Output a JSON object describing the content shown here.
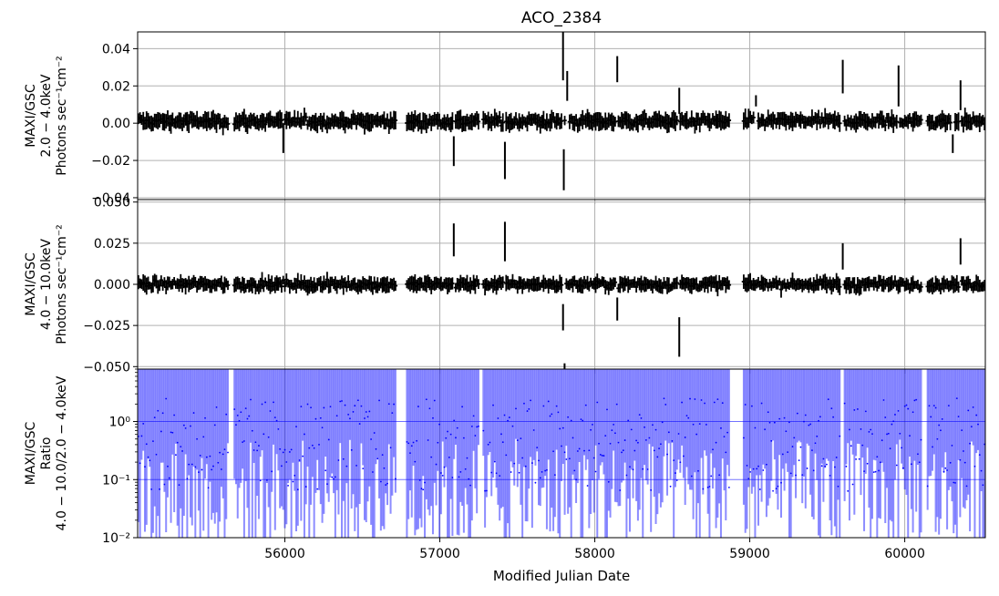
{
  "title": "ACO_2384",
  "xlabel": "Modified Julian Date",
  "x_ticks": [
    56000,
    57000,
    58000,
    59000,
    60000
  ],
  "xlim": [
    55050,
    60520
  ],
  "colors": {
    "rate_errorbars": "#000000",
    "ratio_errorbars": "#0000ff",
    "grid": "#b0b0b0",
    "ratio_guides": "#0000ff"
  },
  "panels": [
    {
      "id": "soft",
      "ylabel": [
        "MAXI/GSC",
        "2.0 − 4.0keV",
        "Photons sec⁻¹cm⁻²"
      ],
      "ylim": [
        -0.041,
        0.049
      ],
      "ytick_values": [
        -0.04,
        -0.02,
        0.0,
        0.02,
        0.04
      ],
      "ytick_labels": [
        "−0.04",
        "−0.02",
        "0.00",
        "0.02",
        "0.04"
      ]
    },
    {
      "id": "hard",
      "ylabel": [
        "MAXI/GSC",
        "4.0 − 10.0keV",
        "Photons sec⁻¹cm⁻²"
      ],
      "ylim": [
        -0.0515,
        0.0515
      ],
      "ytick_values": [
        -0.05,
        -0.025,
        0.0,
        0.025,
        0.05
      ],
      "ytick_labels": [
        "−0.050",
        "−0.025",
        "0.000",
        "0.025",
        "0.050"
      ]
    },
    {
      "id": "ratio",
      "ylabel": [
        "MAXI/GSC",
        "Ratio",
        "4.0 − 10.0/2.0 − 4.0keV"
      ],
      "yscale": "log",
      "ylim": [
        0.01,
        8
      ],
      "ytick_values": [
        0.01,
        0.1,
        1
      ],
      "ytick_labels": [
        "10⁻²",
        "10⁻¹",
        "10⁰"
      ],
      "guide_lines": [
        0.1,
        1
      ]
    }
  ],
  "chart_data": {
    "type": "scatter",
    "title": "ACO_2384",
    "xlabel": "Modified Julian Date",
    "xlim": [
      55050,
      60520
    ],
    "grid": true,
    "notes": "Three stacked panels of binned light curves with error bars; typical rates scatter near 0 with ~±0.004 errors.",
    "series": [
      {
        "name": "2.0 − 4.0keV",
        "typical_error": 0.004,
        "values_mean": 0.001,
        "highlight_points": [
          {
            "x": 55990,
            "y": -0.008,
            "err": 0.008
          },
          {
            "x": 57090,
            "y": -0.015,
            "err": 0.008
          },
          {
            "x": 57420,
            "y": -0.02,
            "err": 0.01
          },
          {
            "x": 57795,
            "y": 0.036,
            "err": 0.013
          },
          {
            "x": 57800,
            "y": -0.025,
            "err": 0.011
          },
          {
            "x": 57822,
            "y": 0.02,
            "err": 0.008
          },
          {
            "x": 58145,
            "y": 0.029,
            "err": 0.007
          },
          {
            "x": 58545,
            "y": 0.012,
            "err": 0.007
          },
          {
            "x": 59040,
            "y": 0.012,
            "err": 0.003
          },
          {
            "x": 59600,
            "y": 0.025,
            "err": 0.009
          },
          {
            "x": 59960,
            "y": 0.02,
            "err": 0.011
          },
          {
            "x": 60310,
            "y": -0.011,
            "err": 0.005
          },
          {
            "x": 60360,
            "y": 0.015,
            "err": 0.008
          }
        ]
      },
      {
        "name": "4.0 − 10.0keV",
        "typical_error": 0.004,
        "values_mean": 0.0,
        "highlight_points": [
          {
            "x": 57090,
            "y": 0.027,
            "err": 0.01
          },
          {
            "x": 57420,
            "y": 0.026,
            "err": 0.012
          },
          {
            "x": 57795,
            "y": -0.02,
            "err": 0.008
          },
          {
            "x": 57805,
            "y": -0.052,
            "err": 0.004
          },
          {
            "x": 58145,
            "y": -0.015,
            "err": 0.007
          },
          {
            "x": 58545,
            "y": -0.032,
            "err": 0.012
          },
          {
            "x": 59600,
            "y": 0.017,
            "err": 0.008
          },
          {
            "x": 60360,
            "y": 0.02,
            "err": 0.008
          }
        ]
      },
      {
        "name": "Ratio",
        "scale": "log",
        "values_median": 0.9,
        "lower_bound_typical": 0.01,
        "upper_bound_typical": 8
      }
    ]
  }
}
